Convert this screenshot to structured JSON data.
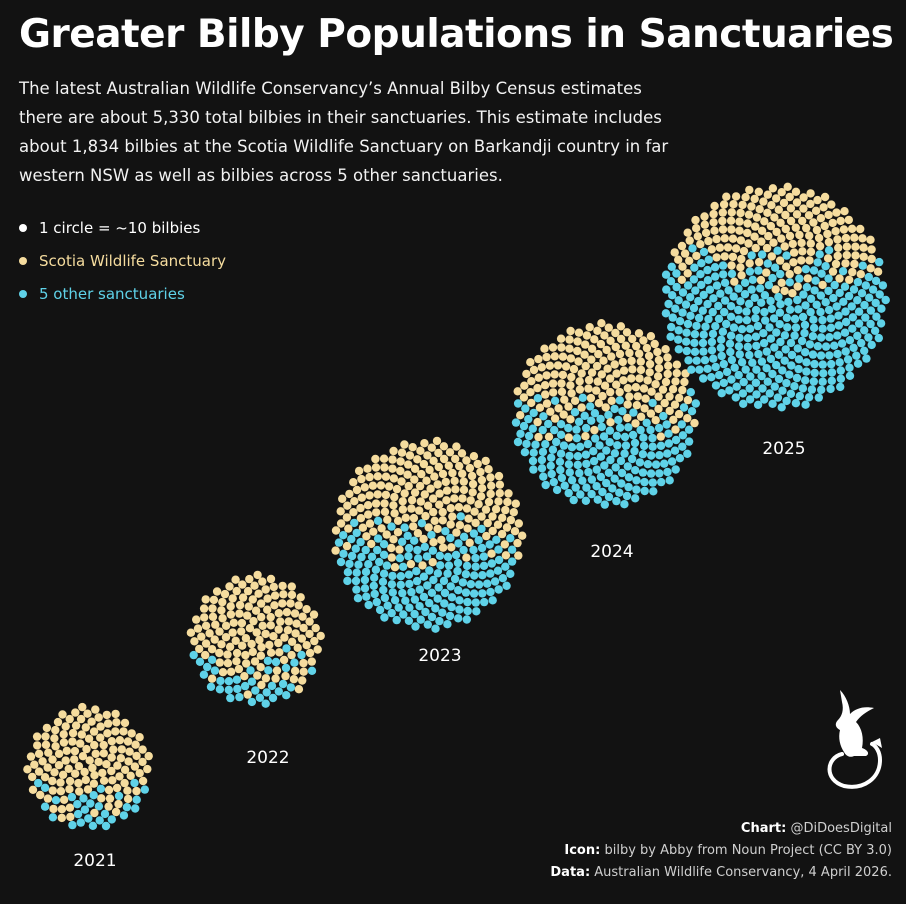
{
  "title": "Greater Bilby Populations in Sanctuaries",
  "subtitle": "The latest Australian Wildlife Conservancy’s Annual Bilby Census estimates there are about 5,330 total bilbies in their sanctuaries. This estimate includes about 1,834 bilbies at the Scotia Wildlife Sanctuary on Barkandji country in far western NSW as well as bilbies across 5 other sanctuaries.",
  "legend": [
    {
      "label": "1 circle = ~10 bilbies",
      "color": "#ffffff"
    },
    {
      "label": "Scotia Wildlife Sanctuary",
      "color": "#f5dc9e"
    },
    {
      "label": "5 other sanctuaries",
      "color": "#5fd2e8"
    }
  ],
  "credits": {
    "chart_label": "Chart:",
    "chart_value": "@DiDoesDigital",
    "icon_label": "Icon:",
    "icon_value": "bilby by Abby from Noun Project (CC BY 3.0)",
    "data_label": "Data:",
    "data_value": "Australian Wildlife Conservancy, 4 April 2026."
  },
  "icon": "bilby-icon",
  "chart_data": {
    "type": "unit-dot",
    "unit": "1 circle = ~10 bilbies",
    "categories": [
      "2021",
      "2022",
      "2023",
      "2024",
      "2025"
    ],
    "series": [
      {
        "name": "Scotia Wildlife Sanctuary",
        "color": "#f5dc9e",
        "values": [
          1330,
          1460,
          2050,
          1800,
          1834
        ]
      },
      {
        "name": "5 other sanctuaries",
        "color": "#5fd2e8",
        "values": [
          290,
          370,
          1750,
          1800,
          3496
        ]
      }
    ],
    "totals": [
      1620,
      1830,
      3800,
      3600,
      5330
    ]
  }
}
